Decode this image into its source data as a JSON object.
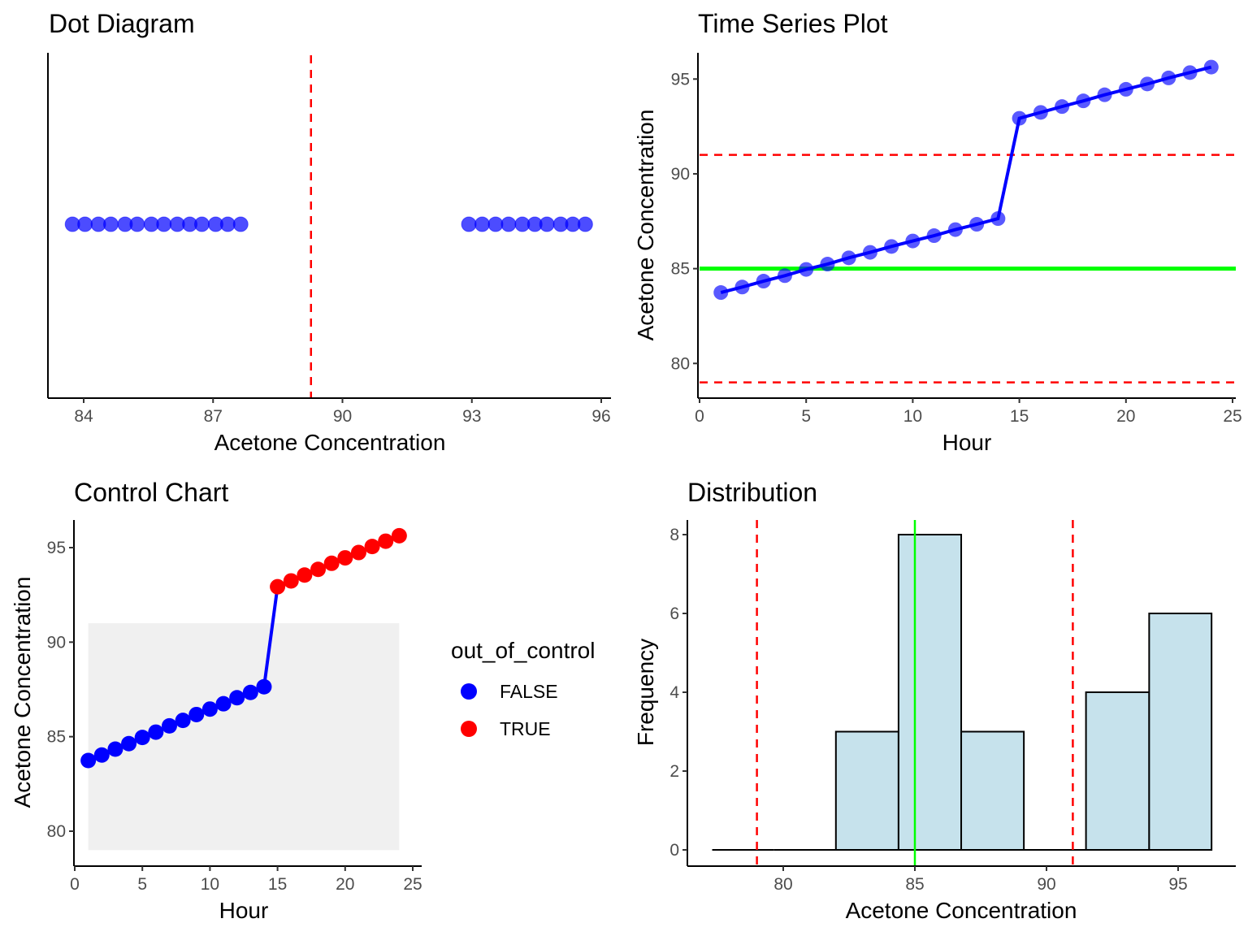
{
  "chart_data": [
    {
      "type": "scatter",
      "title": "Dot Diagram",
      "xlabel": "Acetone Concentration",
      "ylabel": "",
      "xlim": [
        83.2,
        96.2
      ],
      "xticks": [
        84,
        87,
        90,
        93,
        96
      ],
      "grid": false,
      "values": [
        83.74,
        84.03,
        84.34,
        84.63,
        84.96,
        85.24,
        85.57,
        85.86,
        86.17,
        86.46,
        86.74,
        87.06,
        87.34,
        87.64,
        92.93,
        93.24,
        93.55,
        93.85,
        94.17,
        94.46,
        94.74,
        95.06,
        95.34,
        95.63
      ],
      "point_color": "#0000FF",
      "reference_lines": [
        {
          "axis": "x",
          "value": 89.27,
          "style": "dashed",
          "color": "#FF0000"
        }
      ]
    },
    {
      "type": "line",
      "title": "Time Series Plot",
      "xlabel": "Hour",
      "ylabel": "Acetone Concentration",
      "xlim": [
        0,
        25
      ],
      "ylim": [
        78.5,
        96.5
      ],
      "xticks": [
        0,
        5,
        10,
        15,
        20,
        25
      ],
      "yticks": [
        80,
        85,
        90,
        95
      ],
      "grid": false,
      "x": [
        1,
        2,
        3,
        4,
        5,
        6,
        7,
        8,
        9,
        10,
        11,
        12,
        13,
        14,
        15,
        16,
        17,
        18,
        19,
        20,
        21,
        22,
        23,
        24
      ],
      "y": [
        83.74,
        84.03,
        84.34,
        84.63,
        84.96,
        85.24,
        85.57,
        85.86,
        86.17,
        86.46,
        86.74,
        87.06,
        87.34,
        87.64,
        92.93,
        93.24,
        93.55,
        93.85,
        94.17,
        94.46,
        94.74,
        95.06,
        95.34,
        95.63
      ],
      "line_color": "#0000FF",
      "reference_lines": [
        {
          "axis": "y",
          "value": 85,
          "style": "solid",
          "color": "#00FF00"
        },
        {
          "axis": "y",
          "value": 91,
          "style": "dashed",
          "color": "#FF0000"
        },
        {
          "axis": "y",
          "value": 79,
          "style": "dashed",
          "color": "#FF0000"
        }
      ]
    },
    {
      "type": "line",
      "title": "Control Chart",
      "xlabel": "Hour",
      "ylabel": "Acetone Concentration",
      "xlim": [
        0,
        25
      ],
      "ylim": [
        78.5,
        96.5
      ],
      "xticks": [
        0,
        5,
        10,
        15,
        20,
        25
      ],
      "yticks": [
        80,
        85,
        90,
        95
      ],
      "grid": false,
      "x": [
        1,
        2,
        3,
        4,
        5,
        6,
        7,
        8,
        9,
        10,
        11,
        12,
        13,
        14,
        15,
        16,
        17,
        18,
        19,
        20,
        21,
        22,
        23,
        24
      ],
      "y": [
        83.74,
        84.03,
        84.34,
        84.63,
        84.96,
        85.24,
        85.57,
        85.86,
        86.17,
        86.46,
        86.74,
        87.06,
        87.34,
        87.64,
        92.93,
        93.24,
        93.55,
        93.85,
        94.17,
        94.46,
        94.74,
        95.06,
        95.34,
        95.63
      ],
      "out_of_control": [
        false,
        false,
        false,
        false,
        false,
        false,
        false,
        false,
        false,
        false,
        false,
        false,
        false,
        false,
        true,
        true,
        true,
        true,
        true,
        true,
        true,
        true,
        true,
        true
      ],
      "band": {
        "xmin": 1,
        "xmax": 24,
        "ymin": 79,
        "ymax": 91,
        "color": "#F0F0F0"
      },
      "legend": {
        "title": "out_of_control",
        "placement": "right",
        "entries": [
          {
            "label": "FALSE",
            "color": "#0000FF"
          },
          {
            "label": "TRUE",
            "color": "#FF0000"
          }
        ]
      }
    },
    {
      "type": "bar",
      "title": "Distribution",
      "xlabel": "Acetone Concentration",
      "ylabel": "Frequency",
      "xlim": [
        76.3,
        97.2
      ],
      "ylim": [
        -0.4,
        8.4
      ],
      "xticks": [
        80,
        85,
        90,
        95
      ],
      "yticks": [
        0,
        2,
        4,
        6,
        8
      ],
      "grid": false,
      "bin_edges": [
        77.3,
        79.64,
        82.0,
        84.38,
        86.76,
        89.14,
        91.5,
        93.9,
        96.27
      ],
      "values": [
        0,
        0,
        3,
        8,
        3,
        0,
        4,
        6
      ],
      "bar_color": "#C6E2EC",
      "reference_lines": [
        {
          "axis": "x",
          "value": 85,
          "style": "solid",
          "color": "#00FF00"
        },
        {
          "axis": "x",
          "value": 79,
          "style": "dashed",
          "color": "#FF0000"
        },
        {
          "axis": "x",
          "value": 91,
          "style": "dashed",
          "color": "#FF0000"
        }
      ]
    }
  ]
}
